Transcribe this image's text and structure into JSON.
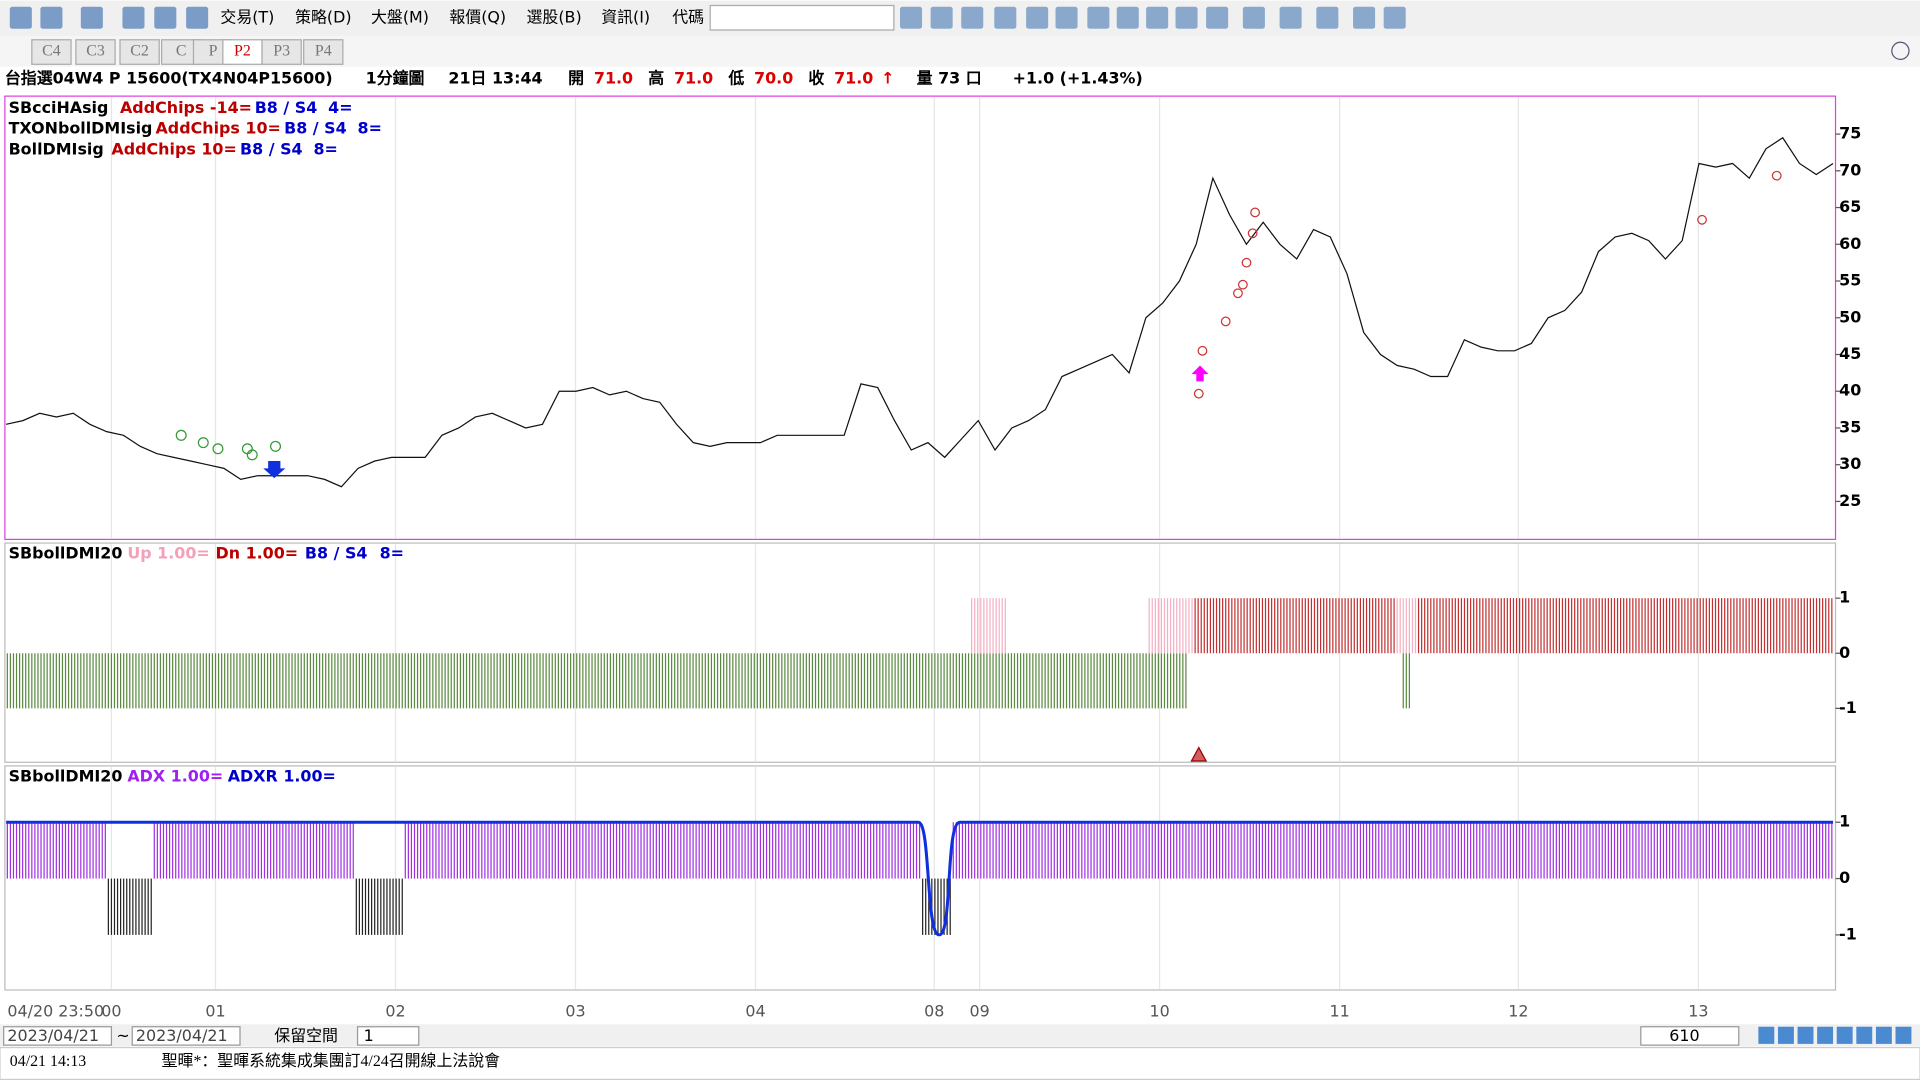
{
  "toolbar": {
    "menus": [
      "交易(T)",
      "策略(D)",
      "大盤(M)",
      "報價(Q)",
      "選股(B)",
      "資訊(I)",
      "代碼"
    ]
  },
  "tabs": {
    "items": [
      "C4",
      "C3",
      "C2",
      "C",
      "P",
      "P2",
      "P3",
      "P4"
    ],
    "active": "P2"
  },
  "header": {
    "symbol": "台指選04W4 P 15600(TX4N04P15600)",
    "interval": "1分鐘圖",
    "time": "21日 13:44",
    "open_label": "開",
    "open": "71.0",
    "high_label": "高",
    "high": "71.0",
    "low_label": "低",
    "low": "70.0",
    "close_label": "收",
    "close": "71.0",
    "arrow": "↑",
    "volume": "量 73 口",
    "change": "+1.0 (+1.43%)"
  },
  "price_panel": {
    "legend": [
      [
        "SBcciHAsig",
        "AddChips -14=",
        "B8 / S4",
        "4="
      ],
      [
        "TXONbollDMIsig",
        "AddChips 10=",
        "B8 / S4",
        "8="
      ],
      [
        "BollDMIsig",
        "AddChips 10=",
        "B8 / S4",
        "8="
      ]
    ],
    "yticks": [
      25,
      30,
      35,
      40,
      45,
      50,
      55,
      60,
      65,
      70,
      75
    ],
    "ylim": [
      20,
      80
    ],
    "values": [
      35.5,
      36,
      37,
      36.5,
      37,
      35.5,
      34.5,
      34,
      32.5,
      31.5,
      31,
      30.5,
      30,
      29.5,
      28,
      28.5,
      28.5,
      28.5,
      28.5,
      28,
      27,
      29.5,
      30.5,
      31,
      31,
      31,
      34,
      35,
      36.5,
      37,
      36,
      35,
      35.5,
      40,
      40,
      40.5,
      39.5,
      40,
      39,
      38.5,
      35.5,
      33,
      32.5,
      33,
      33,
      33,
      34,
      34,
      34,
      34,
      34,
      41,
      40.5,
      36,
      32,
      33,
      31,
      33.5,
      36,
      32,
      35,
      36,
      37.5,
      42,
      43,
      44,
      45,
      42.5,
      50,
      52,
      55,
      60,
      69,
      64,
      60,
      63,
      60,
      58,
      62,
      61,
      56,
      48,
      45,
      43.5,
      43,
      42,
      42,
      47,
      46,
      45.5,
      45.5,
      46.5,
      50,
      51,
      53.5,
      59,
      61,
      61.5,
      60.5,
      58,
      60.5,
      71,
      70.5,
      71,
      69,
      73,
      74.5,
      71,
      69.5,
      71
    ]
  },
  "boll_panel": {
    "legend": [
      "SBbollDMI20",
      "Up 1.00=",
      "Dn 1.00=",
      "B8 / S4",
      "8="
    ],
    "yticks": [
      -1,
      0,
      1
    ]
  },
  "adx_panel": {
    "legend": [
      "SBbollDMI20",
      "ADX 1.00=",
      "ADXR 1.00="
    ],
    "yticks": [
      -1,
      0,
      1
    ]
  },
  "x_axis": {
    "labels": [
      "04/20 23:50",
      "00",
      "01",
      "02",
      "03",
      "04",
      "08",
      "09",
      "10",
      "11",
      "12",
      "13"
    ]
  },
  "bottom": {
    "date_from": "2023/04/21",
    "tilde": "~",
    "date_to": "2023/04/21",
    "reserve_label": "保留空間",
    "reserve_value": "1",
    "count": "610"
  },
  "news": {
    "time": "04/21 14:13",
    "text": "聖暉*：聖暉系統集成集團訂4/24召開線上法說會"
  }
}
